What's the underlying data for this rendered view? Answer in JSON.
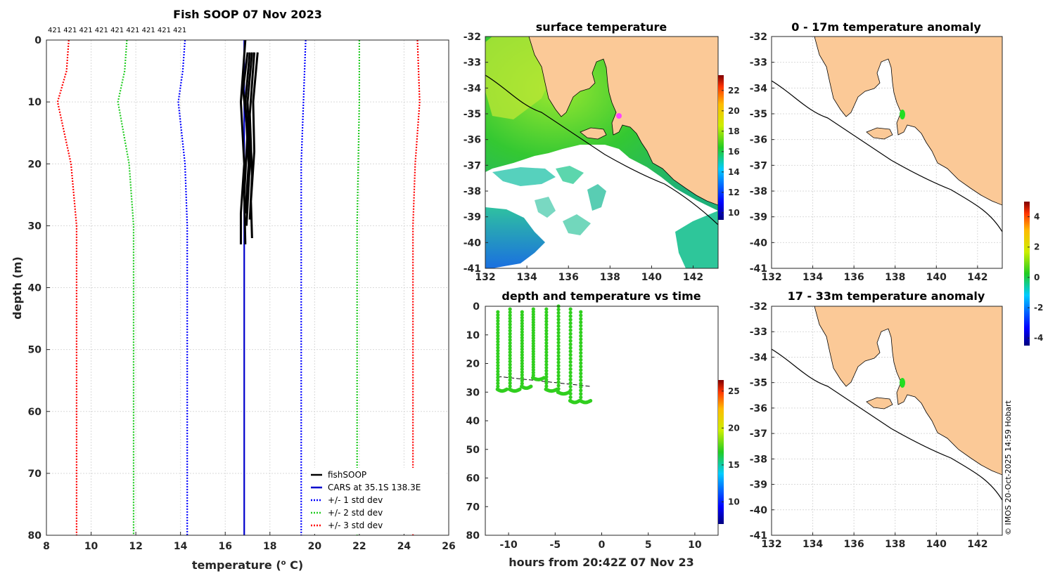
{
  "chart_data": [
    {
      "id": "profile",
      "type": "line",
      "title": "Fish SOOP 07 Nov 2023",
      "xlabel": "temperature (",
      "xlabel_sup": "o",
      "xlabel_end": " C)",
      "ylabel": "depth (m)",
      "xlim": [
        8,
        26
      ],
      "ylim": [
        0,
        80
      ],
      "xticks": [
        8,
        10,
        12,
        14,
        16,
        18,
        20,
        22,
        24,
        26
      ],
      "yticks": [
        0,
        10,
        20,
        30,
        40,
        50,
        60,
        70,
        80
      ],
      "counts_label": "421 421 421 421 421 421 421 421 421",
      "legend": [
        {
          "label": "fishSOOP",
          "color": "#000000",
          "style": "solid"
        },
        {
          "label": "CARS at 35.1S 138.3E",
          "color": "#0000cc",
          "style": "solid"
        },
        {
          "label": "+/- 1 std dev",
          "color": "#0000ff",
          "style": "dotted"
        },
        {
          "label": "+/- 2 std dev",
          "color": "#22cc22",
          "style": "dotted"
        },
        {
          "label": "+/- 3 std dev",
          "color": "#ff0000",
          "style": "dotted"
        }
      ],
      "series": [
        {
          "name": "CARS",
          "color": "#0000cc",
          "style": "solid",
          "points": [
            [
              16.85,
              0
            ],
            [
              16.85,
              80
            ]
          ]
        },
        {
          "name": "minus 1 std",
          "color": "#0000ff",
          "style": "dotted",
          "points": [
            [
              14.2,
              0
            ],
            [
              14.1,
              5
            ],
            [
              13.9,
              10
            ],
            [
              14.2,
              20
            ],
            [
              14.3,
              30
            ],
            [
              14.3,
              80
            ]
          ]
        },
        {
          "name": "plus 1 std",
          "color": "#0000ff",
          "style": "dotted",
          "points": [
            [
              19.6,
              0
            ],
            [
              19.5,
              10
            ],
            [
              19.4,
              20
            ],
            [
              19.4,
              30
            ],
            [
              19.4,
              80
            ]
          ]
        },
        {
          "name": "minus 2 std",
          "color": "#22cc22",
          "style": "dotted",
          "points": [
            [
              11.6,
              0
            ],
            [
              11.5,
              5
            ],
            [
              11.2,
              10
            ],
            [
              11.7,
              20
            ],
            [
              11.9,
              30
            ],
            [
              11.9,
              80
            ]
          ]
        },
        {
          "name": "plus 2 std",
          "color": "#22cc22",
          "style": "dotted",
          "points": [
            [
              22.0,
              0
            ],
            [
              22.0,
              10
            ],
            [
              21.95,
              20
            ],
            [
              21.9,
              30
            ],
            [
              21.9,
              80
            ]
          ]
        },
        {
          "name": "minus 3 std",
          "color": "#ff0000",
          "style": "dotted",
          "points": [
            [
              9.0,
              0
            ],
            [
              8.9,
              5
            ],
            [
              8.5,
              10
            ],
            [
              9.1,
              20
            ],
            [
              9.35,
              30
            ],
            [
              9.35,
              80
            ]
          ]
        },
        {
          "name": "plus 3 std",
          "color": "#ff0000",
          "style": "dotted",
          "points": [
            [
              24.6,
              0
            ],
            [
              24.7,
              10
            ],
            [
              24.5,
              20
            ],
            [
              24.4,
              30
            ],
            [
              24.4,
              80
            ]
          ]
        },
        {
          "name": "fishSOOP cast 1",
          "color": "#000000",
          "style": "solid",
          "points": [
            [
              16.9,
              0
            ],
            [
              16.7,
              10
            ],
            [
              16.85,
              20
            ],
            [
              16.7,
              28
            ],
            [
              16.7,
              33
            ]
          ]
        },
        {
          "name": "fishSOOP cast 2",
          "color": "#000000",
          "style": "solid",
          "points": [
            [
              17.0,
              2
            ],
            [
              16.8,
              8
            ],
            [
              17.0,
              15
            ],
            [
              16.85,
              25
            ],
            [
              16.9,
              33
            ]
          ]
        },
        {
          "name": "fishSOOP cast 3",
          "color": "#000000",
          "style": "solid",
          "points": [
            [
              17.2,
              2
            ],
            [
              17.0,
              10
            ],
            [
              17.1,
              20
            ],
            [
              16.95,
              30
            ]
          ]
        },
        {
          "name": "fishSOOP cast 4",
          "color": "#000000",
          "style": "solid",
          "points": [
            [
              17.3,
              2
            ],
            [
              17.1,
              12
            ],
            [
              17.2,
              22
            ],
            [
              17.1,
              29
            ]
          ]
        },
        {
          "name": "fishSOOP cast 5",
          "color": "#000000",
          "style": "solid",
          "points": [
            [
              17.45,
              2
            ],
            [
              17.25,
              10
            ],
            [
              17.3,
              18
            ],
            [
              17.15,
              26
            ],
            [
              17.2,
              32
            ]
          ]
        },
        {
          "name": "fishSOOP cast 6",
          "color": "#000000",
          "style": "solid",
          "points": [
            [
              17.1,
              2
            ],
            [
              16.9,
              10
            ],
            [
              17.05,
              20
            ],
            [
              16.9,
              28
            ]
          ]
        }
      ]
    },
    {
      "id": "sst_map",
      "type": "heatmap",
      "title": "surface temperature",
      "xlim": [
        132,
        143.2
      ],
      "ylim": [
        -41,
        -32
      ],
      "xticks": [
        132,
        134,
        136,
        138,
        140,
        142
      ],
      "yticks": [
        -32,
        -33,
        -34,
        -35,
        -36,
        -37,
        -38,
        -39,
        -40,
        -41
      ],
      "colorbar": {
        "ticks": [
          10,
          12,
          14,
          16,
          18,
          20,
          22
        ],
        "range": [
          9.3,
          23.5
        ]
      }
    },
    {
      "id": "anomaly_0_17",
      "type": "heatmap",
      "title": "0 - 17m temperature anomaly",
      "xlim": [
        132,
        143.2
      ],
      "ylim": [
        -41,
        -32
      ],
      "xticks": [
        132,
        134,
        136,
        138,
        140,
        142
      ],
      "yticks": [
        -32,
        -33,
        -34,
        -35,
        -36,
        -37,
        -38,
        -39,
        -40,
        -41
      ],
      "colorbar": {
        "ticks": [
          -4,
          -2,
          0,
          2,
          4
        ],
        "range": [
          -4.5,
          5
        ]
      }
    },
    {
      "id": "depth_time",
      "type": "scatter",
      "title": "depth and temperature vs time",
      "xlabel": "hours from 20:42Z 07 Nov 23",
      "xlim": [
        -12.5,
        12.5
      ],
      "ylim": [
        0,
        80
      ],
      "xticks": [
        -10,
        -5,
        0,
        5,
        10
      ],
      "yticks": [
        0,
        10,
        20,
        30,
        40,
        50,
        60,
        70,
        80
      ],
      "colorbar": {
        "ticks": [
          10,
          15,
          20,
          25
        ],
        "range": [
          7,
          26.5
        ]
      },
      "casts": [
        {
          "t_start": -11.2,
          "t_end": -10.2,
          "top": 2,
          "bottom": 29
        },
        {
          "t_start": -9.9,
          "t_end": -8.8,
          "top": 1,
          "bottom": 29
        },
        {
          "t_start": -8.6,
          "t_end": -7.6,
          "top": 2,
          "bottom": 28
        },
        {
          "t_start": -7.4,
          "t_end": -6.2,
          "top": 1,
          "bottom": 25
        },
        {
          "t_start": -6.0,
          "t_end": -4.8,
          "top": 1,
          "bottom": 29
        },
        {
          "t_start": -4.7,
          "t_end": -3.5,
          "top": 0,
          "bottom": 30
        },
        {
          "t_start": -3.4,
          "t_end": -2.4,
          "top": 1,
          "bottom": 33
        },
        {
          "t_start": -2.3,
          "t_end": -1.2,
          "top": 2,
          "bottom": 33
        }
      ],
      "bottom_line": [
        [
          -11.2,
          24.5
        ],
        [
          -1.2,
          28
        ]
      ]
    },
    {
      "id": "anomaly_17_33",
      "type": "heatmap",
      "title": "17 - 33m temperature anomaly",
      "xlim": [
        132,
        143.2
      ],
      "ylim": [
        -41,
        -32
      ],
      "xticks": [
        132,
        134,
        136,
        138,
        140,
        142
      ],
      "yticks": [
        -32,
        -33,
        -34,
        -35,
        -36,
        -37,
        -38,
        -39,
        -40,
        -41
      ]
    }
  ],
  "credit": "© IMOS 20-Oct-2025 14:59 Hobart",
  "colors": {
    "land": "#fbc997",
    "coast": "#000000"
  }
}
